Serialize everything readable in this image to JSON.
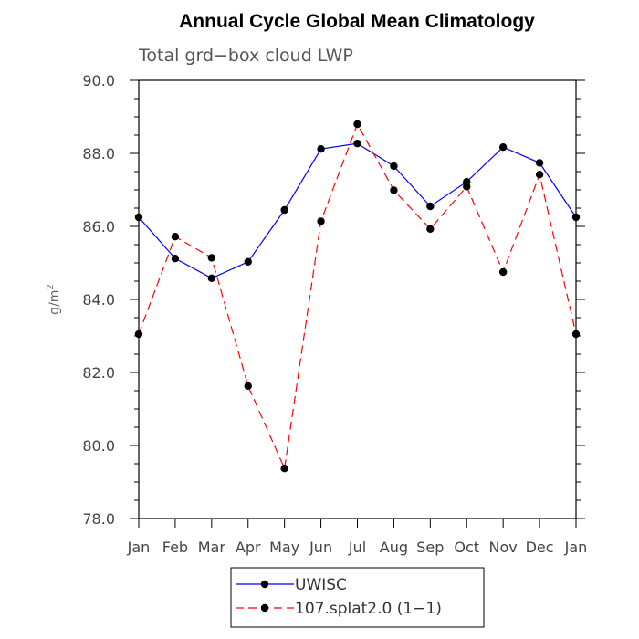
{
  "chart_data": {
    "type": "line",
    "title": "Annual Cycle Global Mean Climatology",
    "subtitle": "Total grd−box cloud LWP",
    "ylabel_base": "g/m",
    "ylabel_sup": "2",
    "ylim": [
      78.0,
      90.0
    ],
    "yticks": [
      "78.0",
      "80.0",
      "82.0",
      "84.0",
      "86.0",
      "88.0",
      "90.0"
    ],
    "categories": [
      "Jan",
      "Feb",
      "Mar",
      "Apr",
      "May",
      "Jun",
      "Jul",
      "Aug",
      "Sep",
      "Oct",
      "Nov",
      "Dec",
      "Jan"
    ],
    "series": [
      {
        "name": "UWISC",
        "color": "#0000ff",
        "dash": "solid",
        "values": [
          86.25,
          85.12,
          84.58,
          85.03,
          86.45,
          88.12,
          88.27,
          87.65,
          86.55,
          87.22,
          88.17,
          87.74,
          86.25
        ]
      },
      {
        "name": "107.splat2.0 (1−1)",
        "color": "#ff0000",
        "dash": "dashed",
        "values": [
          83.05,
          85.72,
          85.14,
          81.63,
          79.37,
          86.14,
          88.8,
          86.99,
          85.93,
          87.09,
          84.75,
          87.42,
          83.05
        ]
      }
    ],
    "legend_position": "bottom"
  }
}
